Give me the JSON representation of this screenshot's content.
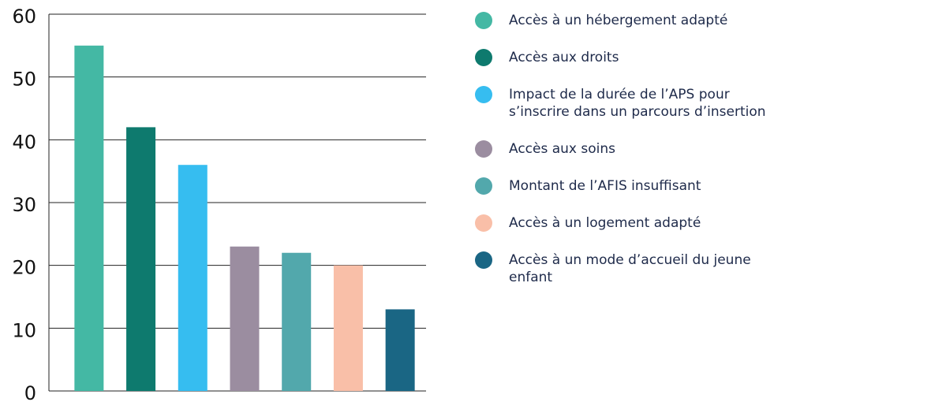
{
  "chart_data": {
    "type": "bar",
    "categories": [
      "Accès à un hébergement adapté",
      "Accès aux droits",
      "Impact de la durée de l’APS pour s’inscrire dans un parcours d’insertion",
      "Accès aux soins",
      "Montant de l’AFIS insuffisant",
      "Accès à un logement adapté",
      "Accès à un mode d’accueil du jeune enfant"
    ],
    "values": [
      55,
      42,
      36,
      23,
      22,
      20,
      13
    ],
    "colors": [
      "#44b8a4",
      "#0e7a6e",
      "#36bdf0",
      "#9b8da0",
      "#52a8ac",
      "#f9bfa8",
      "#1a6684"
    ],
    "ylim": [
      0,
      60
    ],
    "yticks": [
      0,
      10,
      20,
      30,
      40,
      50,
      60
    ],
    "grid": true
  }
}
